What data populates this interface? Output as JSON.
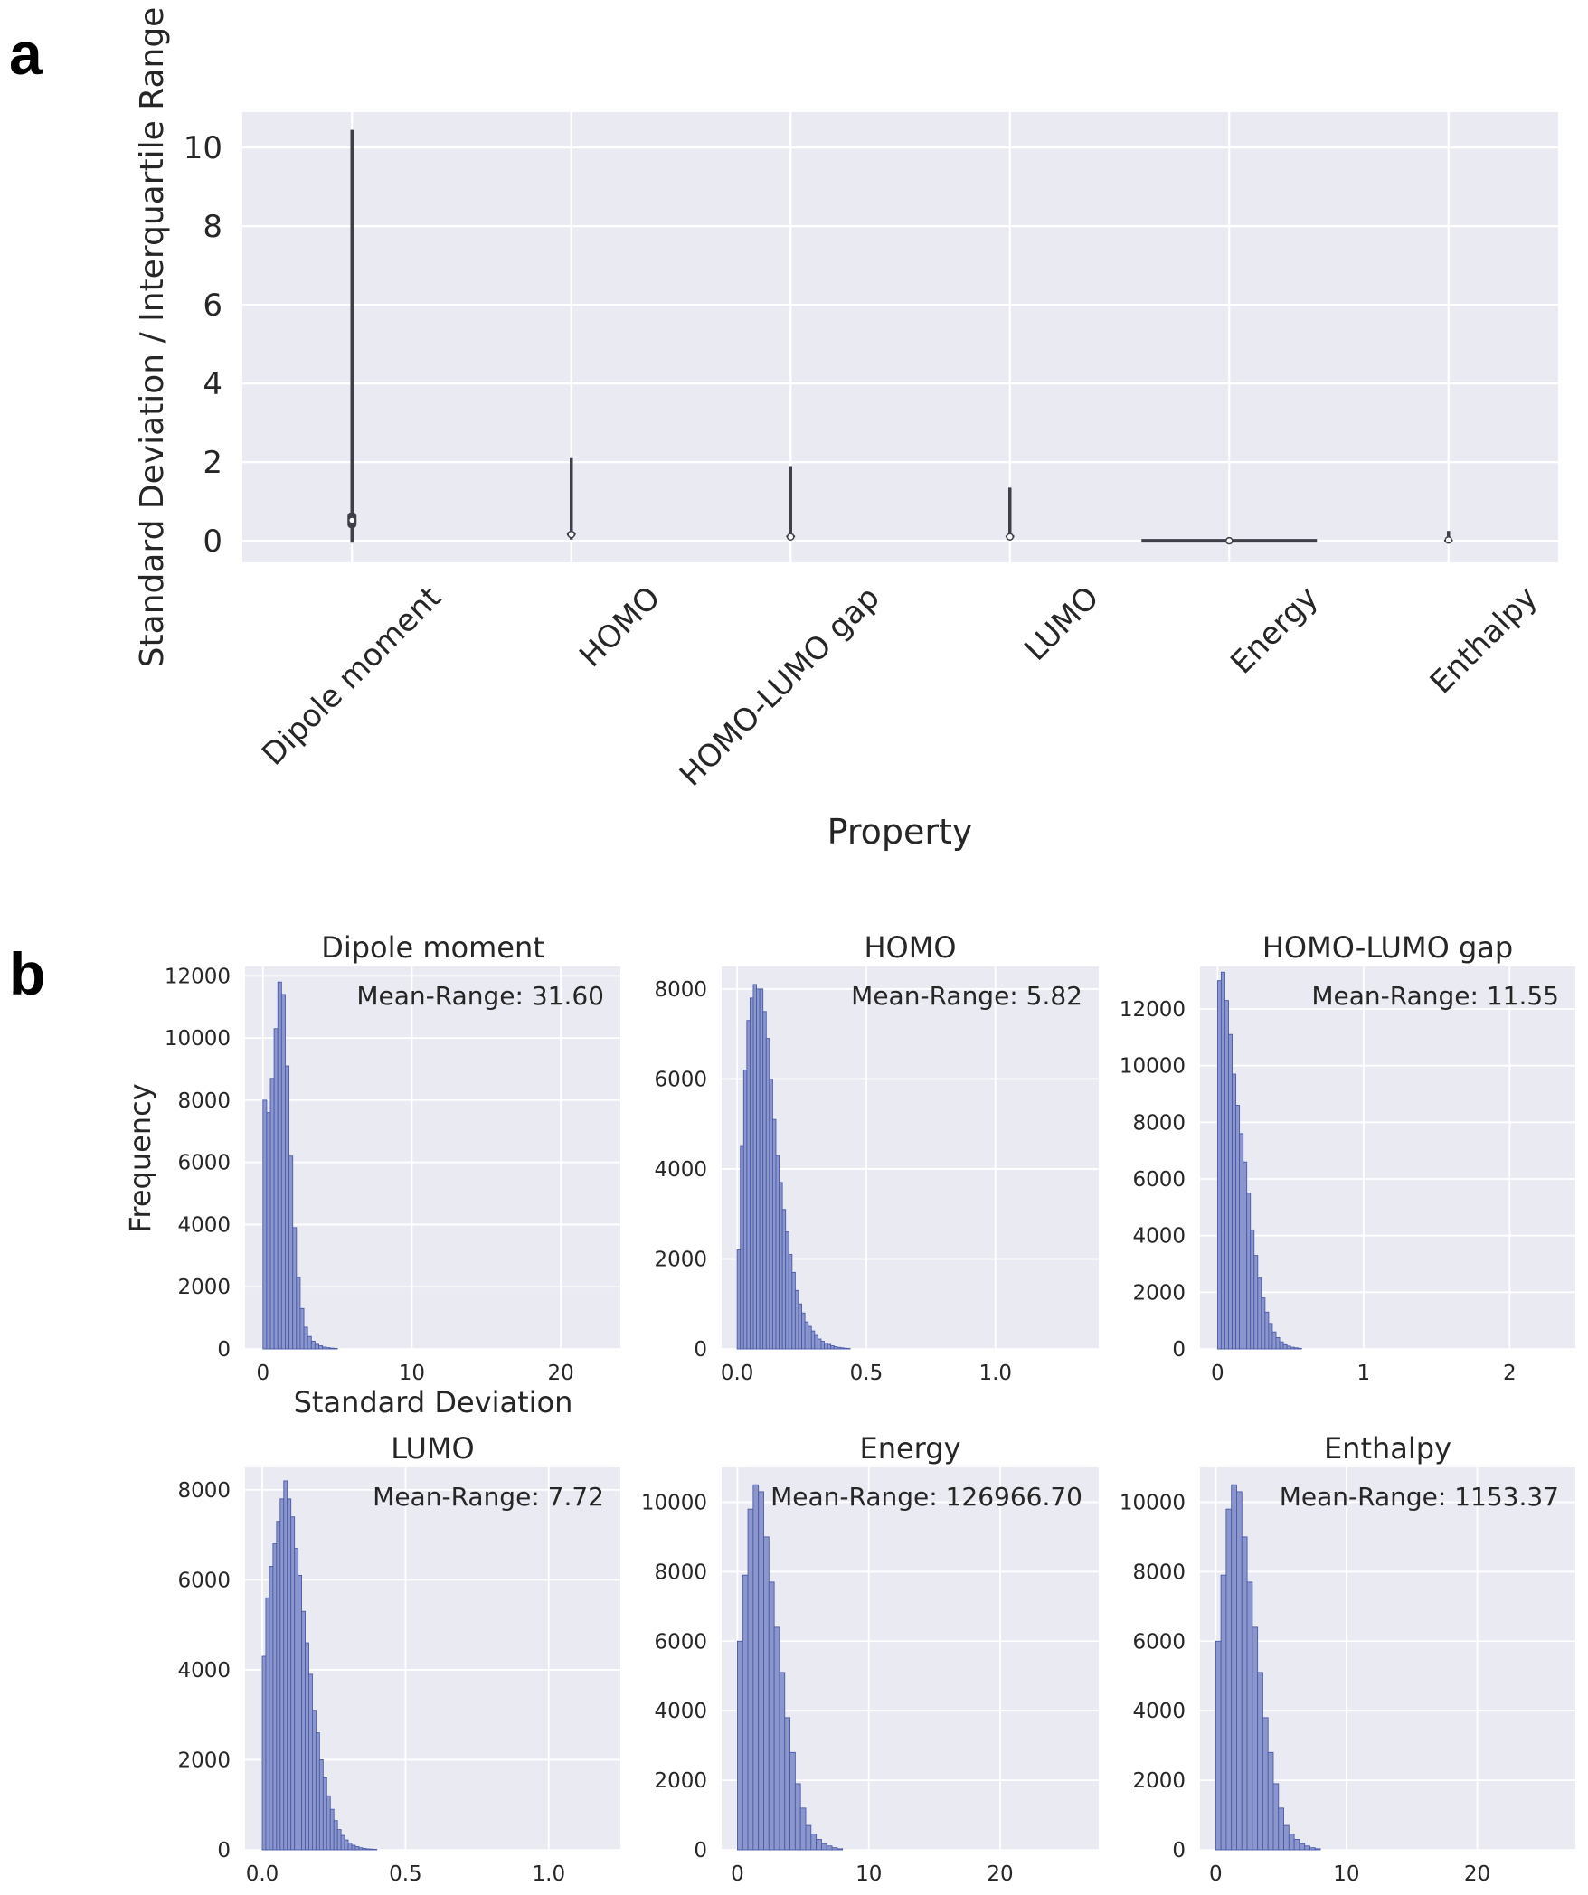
{
  "figure": {
    "panel_labels": [
      "a",
      "b"
    ]
  },
  "colors": {
    "axes_bg": "#EAEAF2",
    "grid": "#FFFFFF",
    "violin": "#3F3F4A",
    "bar_fill": "#8B97CC",
    "bar_edge": "#4A5AA8",
    "text": "#262626"
  },
  "chart_data": [
    {
      "type": "violin",
      "panel": "a",
      "title": "",
      "xlabel": "Property",
      "ylabel": "Standard Deviation / Interquartile Range",
      "ylim": [
        -0.55,
        10.9
      ],
      "yticks": [
        0,
        2,
        4,
        6,
        8,
        10
      ],
      "grid": true,
      "categories": [
        "Dipole moment",
        "HOMO",
        "HOMO-LUMO gap",
        "LUMO",
        "Energy",
        "Enthalpy"
      ],
      "series": [
        {
          "min": -0.05,
          "q1": 0.32,
          "median": 0.52,
          "q3": 0.72,
          "max": 10.45
        },
        {
          "min": 0.03,
          "q1": 0.1,
          "median": 0.16,
          "q3": 0.24,
          "max": 2.1
        },
        {
          "min": 0.02,
          "q1": 0.06,
          "median": 0.1,
          "q3": 0.16,
          "max": 1.9
        },
        {
          "min": 0.02,
          "q1": 0.06,
          "median": 0.1,
          "q3": 0.16,
          "max": 1.35
        },
        {
          "min": 0.0,
          "q1": 0.0,
          "median": 0.0,
          "q3": 0.0,
          "max": 0.0
        },
        {
          "min": 0.0,
          "q1": 0.01,
          "median": 0.02,
          "q3": 0.05,
          "max": 0.25
        }
      ]
    },
    {
      "type": "histogram",
      "panel": "b",
      "shared_xlabel": "Standard Deviation",
      "shared_ylabel": "Frequency",
      "subplots": [
        {
          "title": "Dipole moment",
          "annotation": "Mean-Range: 31.60",
          "xlim": [
            -1.2,
            24.0
          ],
          "ylim": [
            0,
            12300
          ],
          "xticks": [
            0,
            10,
            20
          ],
          "xtick_labels": [
            "0",
            "10",
            "20"
          ],
          "yticks": [
            0,
            2000,
            4000,
            6000,
            8000,
            10000,
            12000
          ],
          "bin_start": 0,
          "bin_width": 0.25,
          "counts": [
            8000,
            7600,
            8700,
            10300,
            11800,
            11400,
            9100,
            6200,
            3900,
            2300,
            1300,
            700,
            400,
            250,
            150,
            100,
            60,
            40,
            25,
            15
          ]
        },
        {
          "title": "HOMO",
          "annotation": "Mean-Range: 5.82",
          "xlim": [
            -0.06,
            1.4
          ],
          "ylim": [
            0,
            8500
          ],
          "xticks": [
            0,
            0.5,
            1.0
          ],
          "xtick_labels": [
            "0.0",
            "0.5",
            "1.0"
          ],
          "yticks": [
            0,
            2000,
            4000,
            6000,
            8000
          ],
          "bin_start": 0,
          "bin_width": 0.0125,
          "counts": [
            2200,
            4500,
            6200,
            7300,
            7800,
            8100,
            8000,
            8000,
            7500,
            6900,
            6000,
            5100,
            4300,
            3700,
            3100,
            2600,
            2100,
            1700,
            1300,
            1000,
            800,
            600,
            500,
            400,
            300,
            220,
            170,
            130,
            100,
            70,
            50,
            35,
            25,
            15,
            10
          ]
        },
        {
          "title": "HOMO-LUMO gap",
          "annotation": "Mean-Range: 11.55",
          "xlim": [
            -0.12,
            2.45
          ],
          "ylim": [
            0,
            13500
          ],
          "xticks": [
            0,
            1,
            2
          ],
          "xtick_labels": [
            "0",
            "1",
            "2"
          ],
          "yticks": [
            0,
            2000,
            4000,
            6000,
            8000,
            10000,
            12000
          ],
          "bin_start": 0,
          "bin_width": 0.025,
          "counts": [
            13000,
            13300,
            12300,
            11100,
            9700,
            8600,
            7600,
            6600,
            5500,
            4200,
            3300,
            2500,
            1800,
            1300,
            900,
            600,
            400,
            250,
            150,
            100,
            60,
            40,
            20
          ]
        },
        {
          "title": "LUMO",
          "annotation": "Mean-Range: 7.72",
          "xlim": [
            -0.06,
            1.25
          ],
          "ylim": [
            0,
            8500
          ],
          "xticks": [
            0,
            0.5,
            1.0
          ],
          "xtick_labels": [
            "0.0",
            "0.5",
            "1.0"
          ],
          "yticks": [
            0,
            2000,
            4000,
            6000,
            8000
          ],
          "bin_start": 0,
          "bin_width": 0.0125,
          "counts": [
            4300,
            5600,
            6300,
            6800,
            7300,
            7800,
            8200,
            7800,
            7400,
            6700,
            6100,
            5300,
            4600,
            3900,
            3100,
            2600,
            2000,
            1600,
            1200,
            900,
            650,
            450,
            320,
            220,
            150,
            100,
            70,
            45,
            30,
            20,
            15,
            10
          ]
        },
        {
          "title": "Energy",
          "annotation": "Mean-Range: 126966.70",
          "xlim": [
            -1.2,
            27.5
          ],
          "ylim": [
            0,
            11000
          ],
          "xticks": [
            0,
            10,
            20
          ],
          "xtick_labels": [
            "0",
            "10",
            "20"
          ],
          "yticks": [
            0,
            2000,
            4000,
            6000,
            8000,
            10000
          ],
          "bin_start": 0,
          "bin_width": 0.4,
          "counts": [
            6000,
            7900,
            9800,
            10500,
            10300,
            9000,
            7700,
            6400,
            5100,
            3800,
            2800,
            1900,
            1200,
            700,
            450,
            300,
            180,
            110,
            60,
            30
          ]
        },
        {
          "title": "Enthalpy",
          "annotation": "Mean-Range: 1153.37",
          "xlim": [
            -1.2,
            27.5
          ],
          "ylim": [
            0,
            11000
          ],
          "xticks": [
            0,
            10,
            20
          ],
          "xtick_labels": [
            "0",
            "10",
            "20"
          ],
          "yticks": [
            0,
            2000,
            4000,
            6000,
            8000,
            10000
          ],
          "bin_start": 0,
          "bin_width": 0.4,
          "counts": [
            6000,
            7900,
            9800,
            10500,
            10300,
            9000,
            7700,
            6400,
            5100,
            3800,
            2800,
            1900,
            1200,
            700,
            450,
            300,
            180,
            110,
            60,
            30
          ]
        }
      ]
    }
  ]
}
